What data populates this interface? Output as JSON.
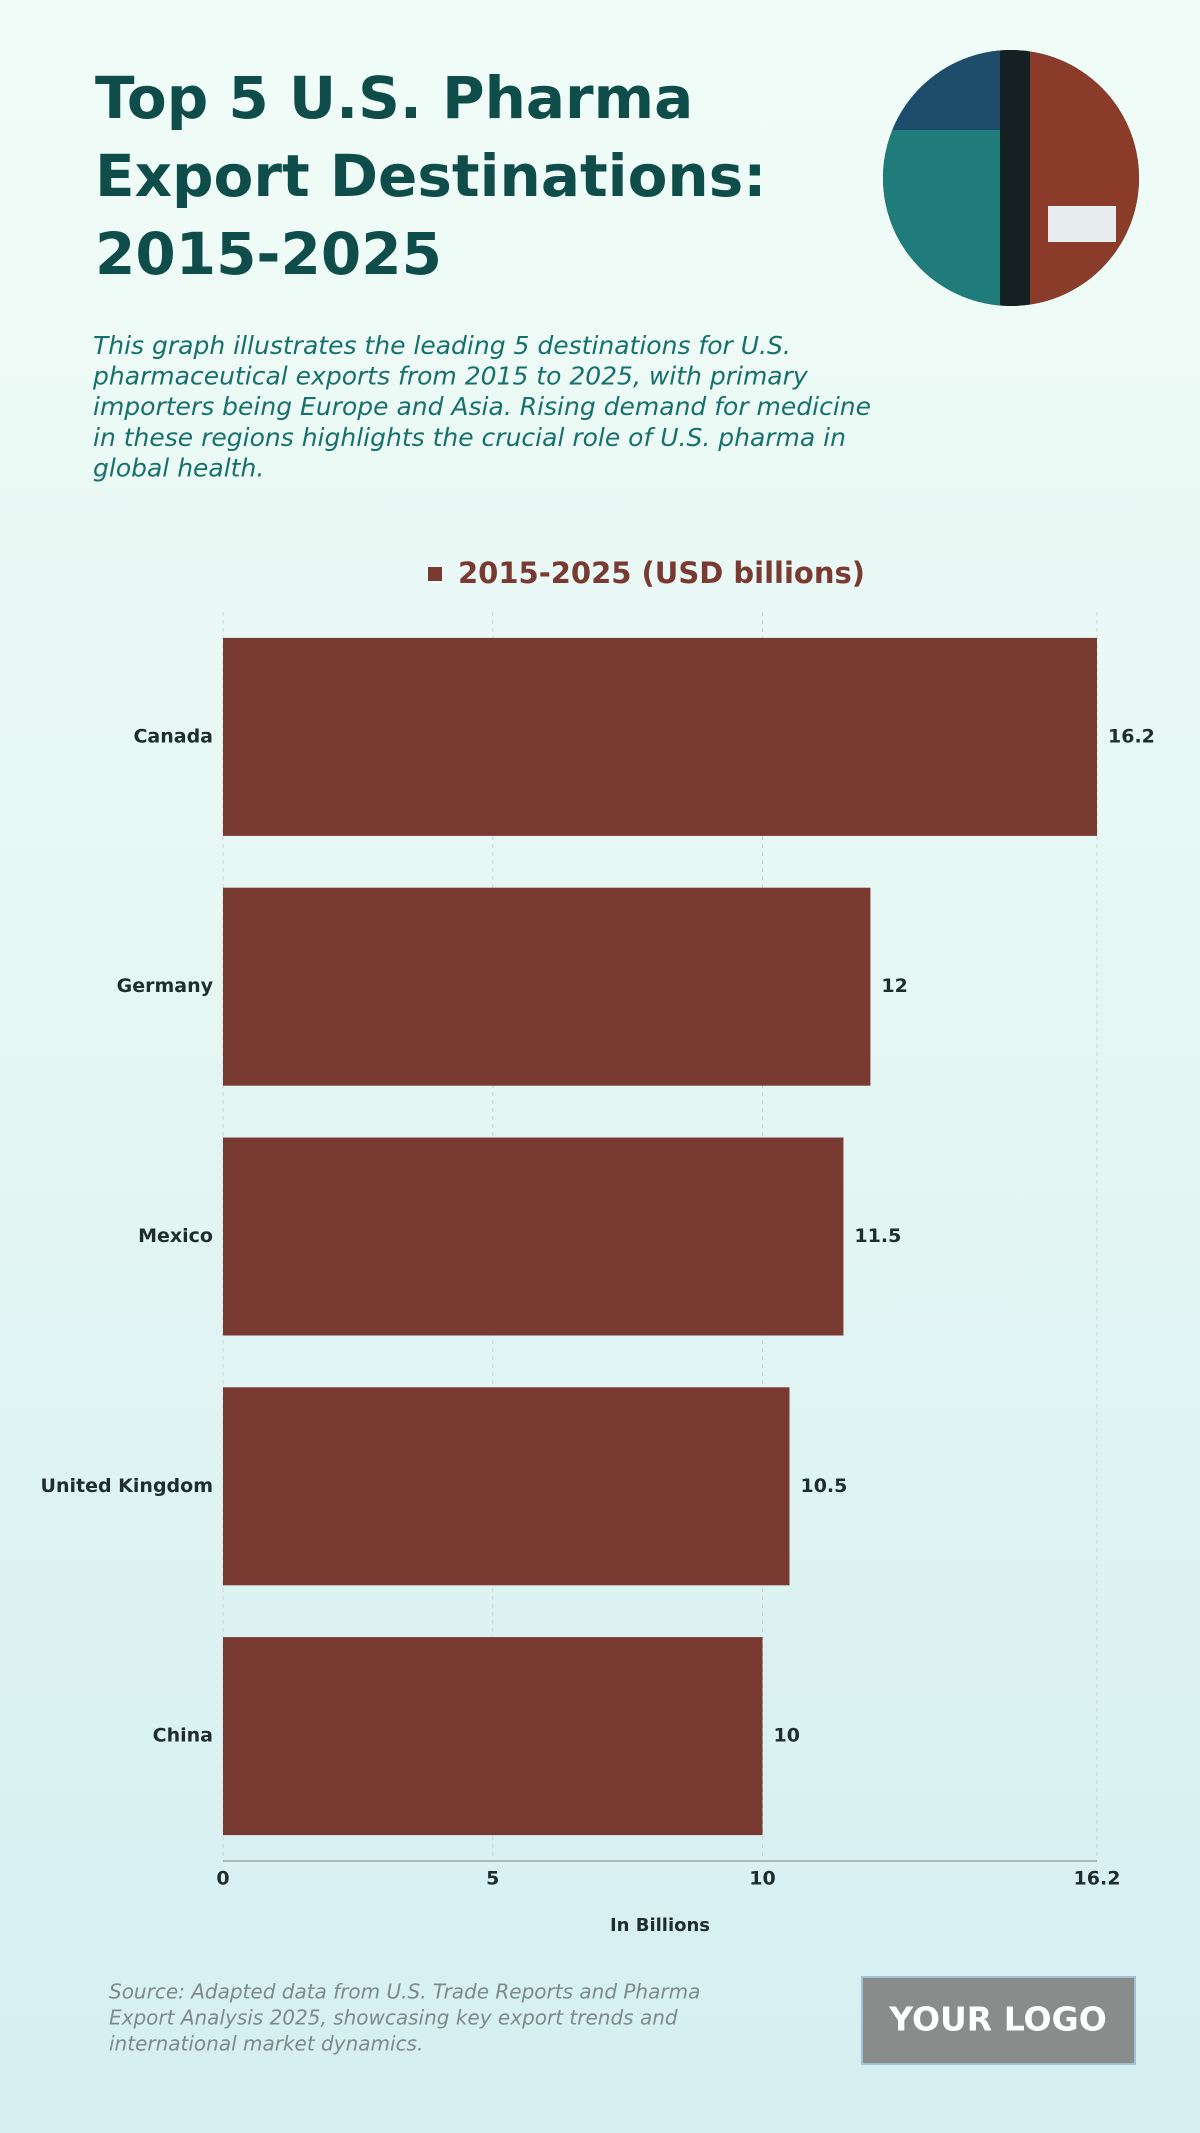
{
  "header": {
    "title_lines": [
      "Top 5 U.S. Pharma",
      "Export Destinations:",
      "2015-2025"
    ],
    "description_lines": [
      "This graph illustrates the leading 5 destinations for U.S.",
      "pharmaceutical exports from 2015 to 2025, with primary",
      "importers being Europe and Asia. Rising demand for medicine",
      "in these regions highlights the crucial role of U.S. pharma in",
      "global health."
    ]
  },
  "chart_data": {
    "type": "hbar",
    "categories": [
      "Canada",
      "Germany",
      "Mexico",
      "United Kingdom",
      "China"
    ],
    "series": [
      {
        "name": "2015-2025 (USD billions)",
        "color": "#783a31",
        "values": [
          16.2,
          12,
          11.5,
          10.5,
          10
        ]
      }
    ],
    "xlim": [
      0,
      16.2
    ],
    "xticks": [
      0,
      5,
      10,
      16.2
    ],
    "xlabel": "In Billions",
    "grid": true
  },
  "footer": {
    "source_lines": [
      "Source: Adapted data from U.S. Trade Reports and Pharma",
      "Export Analysis 2025, showcasing key export trends and",
      "international market dynamics."
    ],
    "logo": "YOUR LOGO"
  }
}
